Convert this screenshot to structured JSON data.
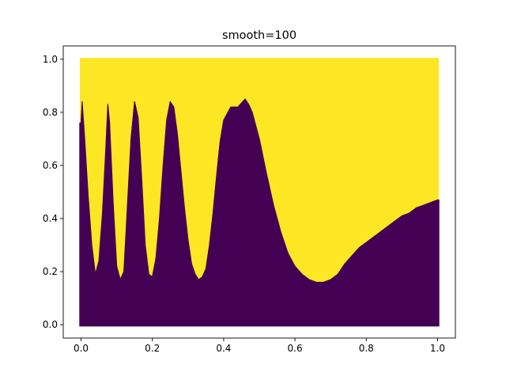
{
  "chart_data": {
    "type": "scatter",
    "title": "smooth=100",
    "xlabel": "",
    "ylabel": "",
    "xlim": [
      -0.05,
      1.05
    ],
    "ylim": [
      -0.05,
      1.05
    ],
    "xticks": [
      "0.0",
      "0.2",
      "0.4",
      "0.6",
      "0.8",
      "1.0"
    ],
    "yticks": [
      "0.0",
      "0.2",
      "0.4",
      "0.6",
      "0.8",
      "1.0"
    ],
    "grid": false,
    "legend": "none",
    "colormap": "viridis",
    "classes": [
      {
        "class": 0,
        "color": "#440154",
        "region": "below boundary"
      },
      {
        "class": 1,
        "color": "#fde725",
        "region": "above boundary"
      }
    ],
    "point_range": {
      "x": [
        0.0,
        1.0
      ],
      "y": [
        0.0,
        1.0
      ]
    },
    "decision_boundary": {
      "x": [
        0.0,
        0.003,
        0.01,
        0.02,
        0.03,
        0.04,
        0.05,
        0.06,
        0.07,
        0.075,
        0.08,
        0.09,
        0.1,
        0.11,
        0.12,
        0.13,
        0.14,
        0.15,
        0.16,
        0.17,
        0.18,
        0.19,
        0.2,
        0.21,
        0.22,
        0.23,
        0.24,
        0.25,
        0.26,
        0.27,
        0.28,
        0.29,
        0.3,
        0.31,
        0.32,
        0.33,
        0.34,
        0.35,
        0.36,
        0.37,
        0.38,
        0.39,
        0.4,
        0.42,
        0.44,
        0.46,
        0.47,
        0.48,
        0.5,
        0.52,
        0.54,
        0.56,
        0.58,
        0.6,
        0.62,
        0.64,
        0.66,
        0.68,
        0.7,
        0.72,
        0.74,
        0.76,
        0.78,
        0.8,
        0.82,
        0.84,
        0.86,
        0.88,
        0.9,
        0.92,
        0.94,
        0.96,
        0.98,
        1.0
      ],
      "y": [
        0.76,
        0.84,
        0.7,
        0.48,
        0.3,
        0.19,
        0.24,
        0.42,
        0.68,
        0.83,
        0.76,
        0.46,
        0.22,
        0.17,
        0.2,
        0.45,
        0.7,
        0.84,
        0.78,
        0.55,
        0.3,
        0.19,
        0.18,
        0.25,
        0.4,
        0.6,
        0.77,
        0.84,
        0.82,
        0.72,
        0.58,
        0.44,
        0.32,
        0.23,
        0.19,
        0.17,
        0.18,
        0.21,
        0.3,
        0.42,
        0.56,
        0.69,
        0.77,
        0.82,
        0.82,
        0.85,
        0.83,
        0.8,
        0.7,
        0.57,
        0.45,
        0.35,
        0.27,
        0.22,
        0.19,
        0.17,
        0.16,
        0.16,
        0.17,
        0.19,
        0.23,
        0.26,
        0.29,
        0.31,
        0.33,
        0.35,
        0.37,
        0.39,
        0.41,
        0.42,
        0.44,
        0.45,
        0.46,
        0.47
      ]
    }
  }
}
